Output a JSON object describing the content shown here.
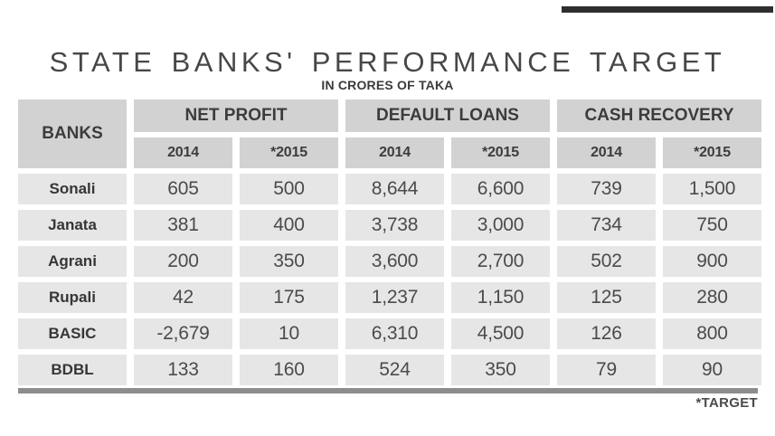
{
  "title": "STATE BANKS' PERFORMANCE TARGET",
  "subtitle": "IN CRORES OF TAKA",
  "footnote": "*TARGET",
  "colors": {
    "header_bg": "#d2d2d2",
    "cell_bg": "#e6e6e6",
    "top_accent_bar": "#2e2e30",
    "bottom_rule": "#8d8d8d",
    "text": "#414042"
  },
  "table": {
    "banks_header": "BANKS",
    "groups": [
      "NET PROFIT",
      "DEFAULT LOANS",
      "CASH RECOVERY"
    ],
    "year_headers": [
      "2014",
      "*2015",
      "2014",
      "*2015",
      "2014",
      "*2015"
    ],
    "rows": [
      {
        "bank": "Sonali",
        "values": [
          "605",
          "500",
          "8,644",
          "6,600",
          "739",
          "1,500"
        ]
      },
      {
        "bank": "Janata",
        "values": [
          "381",
          "400",
          "3,738",
          "3,000",
          "734",
          "750"
        ]
      },
      {
        "bank": "Agrani",
        "values": [
          "200",
          "350",
          "3,600",
          "2,700",
          "502",
          "900"
        ]
      },
      {
        "bank": "Rupali",
        "values": [
          "42",
          "175",
          "1,237",
          "1,150",
          "125",
          "280"
        ]
      },
      {
        "bank": "BASIC",
        "values": [
          "-2,679",
          "10",
          "6,310",
          "4,500",
          "126",
          "800"
        ]
      },
      {
        "bank": "BDBL",
        "values": [
          "133",
          "160",
          "524",
          "350",
          "79",
          "90"
        ]
      }
    ]
  },
  "chart_data": {
    "type": "table",
    "title": "STATE BANKS' PERFORMANCE TARGET",
    "subtitle": "IN CRORES OF TAKA",
    "note": "*TARGET",
    "unit": "crores of taka",
    "column_groups": [
      "NET PROFIT",
      "DEFAULT LOANS",
      "CASH RECOVERY"
    ],
    "columns": [
      "BANKS",
      "NET PROFIT 2014",
      "NET PROFIT *2015",
      "DEFAULT LOANS 2014",
      "DEFAULT LOANS *2015",
      "CASH RECOVERY 2014",
      "CASH RECOVERY *2015"
    ],
    "rows": [
      [
        "Sonali",
        605,
        500,
        8644,
        6600,
        739,
        1500
      ],
      [
        "Janata",
        381,
        400,
        3738,
        3000,
        734,
        750
      ],
      [
        "Agrani",
        200,
        350,
        3600,
        2700,
        502,
        900
      ],
      [
        "Rupali",
        42,
        175,
        1237,
        1150,
        125,
        280
      ],
      [
        "BASIC",
        -2679,
        10,
        6310,
        4500,
        126,
        800
      ],
      [
        "BDBL",
        133,
        160,
        524,
        350,
        79,
        90
      ]
    ]
  }
}
